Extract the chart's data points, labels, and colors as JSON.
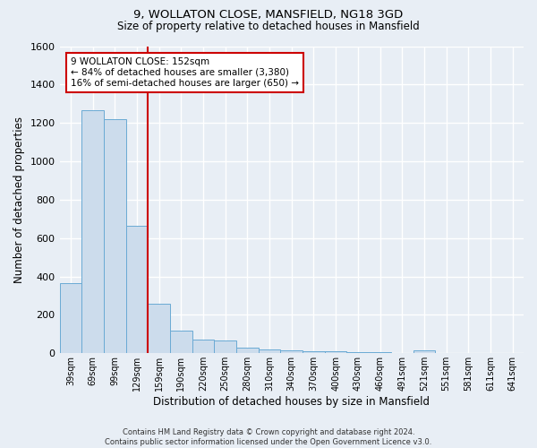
{
  "title1": "9, WOLLATON CLOSE, MANSFIELD, NG18 3GD",
  "title2": "Size of property relative to detached houses in Mansfield",
  "xlabel": "Distribution of detached houses by size in Mansfield",
  "ylabel": "Number of detached properties",
  "bar_labels": [
    "39sqm",
    "69sqm",
    "99sqm",
    "129sqm",
    "159sqm",
    "190sqm",
    "220sqm",
    "250sqm",
    "280sqm",
    "310sqm",
    "340sqm",
    "370sqm",
    "400sqm",
    "430sqm",
    "460sqm",
    "491sqm",
    "521sqm",
    "551sqm",
    "581sqm",
    "611sqm",
    "641sqm"
  ],
  "bar_values": [
    365,
    1265,
    1220,
    665,
    260,
    120,
    70,
    65,
    30,
    20,
    15,
    12,
    10,
    8,
    8,
    0,
    15,
    0,
    0,
    0,
    0
  ],
  "bar_color": "#ccdcec",
  "bar_edge_color": "#6aaad4",
  "vline_color": "#cc0000",
  "annotation_text": "9 WOLLATON CLOSE: 152sqm\n← 84% of detached houses are smaller (3,380)\n16% of semi-detached houses are larger (650) →",
  "annotation_box_color": "#ffffff",
  "annotation_box_edge": "#cc0000",
  "ylim": [
    0,
    1600
  ],
  "yticks": [
    0,
    200,
    400,
    600,
    800,
    1000,
    1200,
    1400,
    1600
  ],
  "footer": "Contains HM Land Registry data © Crown copyright and database right 2024.\nContains public sector information licensed under the Open Government Licence v3.0.",
  "bg_color": "#e8eef5",
  "grid_color": "#ffffff"
}
